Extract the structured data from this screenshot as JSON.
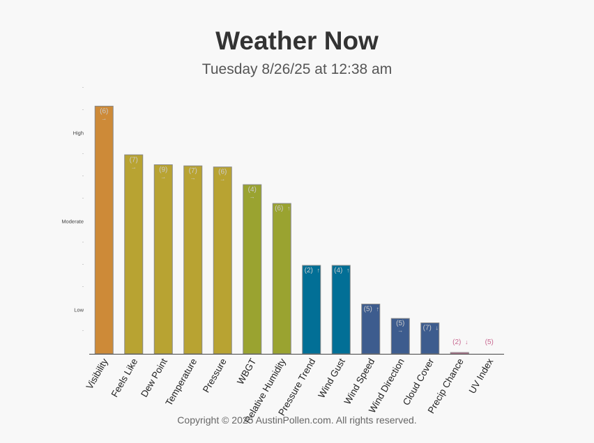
{
  "header": {
    "title": "Weather Now",
    "subtitle": "Tuesday 8/26/25 at 12:38 am"
  },
  "footer": {
    "copyright": "Copyright © 2025 AustinPollen.com.  All rights reserved."
  },
  "chart_data": {
    "type": "bar",
    "title": "Weather Now",
    "subtitle": "Tuesday 8/26/25 at 12:38 am",
    "xlabel": "",
    "ylabel": "",
    "ylim": [
      0,
      12
    ],
    "yticks": [
      {
        "value": 2,
        "label": "Low"
      },
      {
        "value": 6,
        "label": "Moderate"
      },
      {
        "value": 10,
        "label": "High"
      }
    ],
    "minor_ticks": [
      1,
      3,
      4,
      5,
      7,
      8,
      9,
      11,
      12
    ],
    "minor_tick_label": "-",
    "grid": false,
    "legend": "none",
    "categories": [
      "Visibility",
      "Feels Like",
      "Dew Point",
      "Temperature",
      "Pressure",
      "WBGT",
      "Relative Humidity",
      "Pressure Trend",
      "Wind Gust",
      "Wind Speed",
      "Wind Direction",
      "Cloud Cover",
      "Precip Chance",
      "UV Index"
    ],
    "values": [
      11.2,
      9.0,
      8.55,
      8.5,
      8.45,
      7.65,
      6.8,
      4.0,
      4.0,
      2.25,
      1.6,
      1.4,
      0.06,
      0.0
    ],
    "labels": [
      "(6)",
      "(7)",
      "(9)",
      "(7)",
      "(6)",
      "(4)",
      "(6)",
      "(2)",
      "(4)",
      "(5)",
      "(5)",
      "(7)",
      "(2)",
      "(5)"
    ],
    "trends": [
      "→",
      "→",
      "→",
      "→",
      "→",
      "→",
      "↑",
      "↑",
      "↑",
      "↑",
      "→",
      "↓",
      "↓",
      ""
    ],
    "colors": [
      "#cd8a38",
      "#b8a332",
      "#b8a332",
      "#b8a332",
      "#b8a332",
      "#9aa330",
      "#9aa330",
      "#026f96",
      "#026f96",
      "#3d5c8e",
      "#3d5c8e",
      "#3d5c8e",
      "#c86890",
      "#c86890"
    ],
    "label_color": "#cccccc",
    "low_label_color": "#c86890"
  }
}
